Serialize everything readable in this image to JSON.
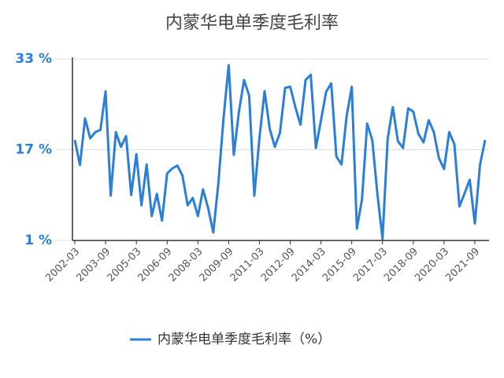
{
  "chart_data": {
    "type": "line",
    "title": "内蒙华电单季度毛利率",
    "categories": [
      "2002-03",
      null,
      null,
      null,
      null,
      null,
      "2003-09",
      null,
      null,
      null,
      null,
      null,
      "2005-03",
      null,
      null,
      null,
      null,
      null,
      "2006-09",
      null,
      null,
      null,
      null,
      null,
      "2008-03",
      null,
      null,
      null,
      null,
      null,
      "2009-09",
      null,
      null,
      null,
      null,
      null,
      "2011-03",
      null,
      null,
      null,
      null,
      null,
      "2012-09",
      null,
      null,
      null,
      null,
      null,
      "2014-03",
      null,
      null,
      null,
      null,
      null,
      "2015-09",
      null,
      null,
      null,
      null,
      null,
      "2017-03",
      null,
      null,
      null,
      null,
      null,
      "2018-09",
      null,
      null,
      null,
      null,
      null,
      "2020-03",
      null,
      null,
      null,
      null,
      null,
      "2021-09",
      null,
      null
    ],
    "series": [
      {
        "name": "内蒙华电单季度毛利率（%）",
        "color": "#2b7fd8",
        "values": [
          18.7,
          14.3,
          22.5,
          19,
          20.1,
          20.5,
          27.3,
          8.9,
          20.1,
          17.5,
          19.4,
          9,
          16.2,
          7.2,
          14.4,
          5.3,
          9.2,
          4.5,
          12.8,
          13.7,
          14.2,
          12.4,
          7.2,
          8.5,
          5.3,
          10,
          6.7,
          2.4,
          11.2,
          22.6,
          31.9,
          16.1,
          23.7,
          29.3,
          26.5,
          8.9,
          19.1,
          27.3,
          20.7,
          17.5,
          20,
          27.9,
          28.1,
          24.5,
          21.4,
          29.3,
          30.2,
          17.3,
          22.2,
          27.2,
          28.7,
          15.8,
          14.4,
          22.9,
          28.1,
          3.1,
          8.3,
          21.6,
          18.7,
          9.2,
          1.3,
          18.9,
          24.5,
          18.5,
          17.3,
          24.3,
          23.7,
          19.8,
          18.3,
          22.2,
          20.1,
          15.5,
          13.6,
          20.1,
          18,
          7,
          9.3,
          11.7,
          4,
          14.3,
          18.7
        ]
      }
    ],
    "ylim": [
      1,
      33
    ],
    "yticks": [
      {
        "value": 1,
        "label": "1 %"
      },
      {
        "value": 17,
        "label": "17 %"
      },
      {
        "value": 33,
        "label": "33 %"
      }
    ],
    "grid": true
  }
}
